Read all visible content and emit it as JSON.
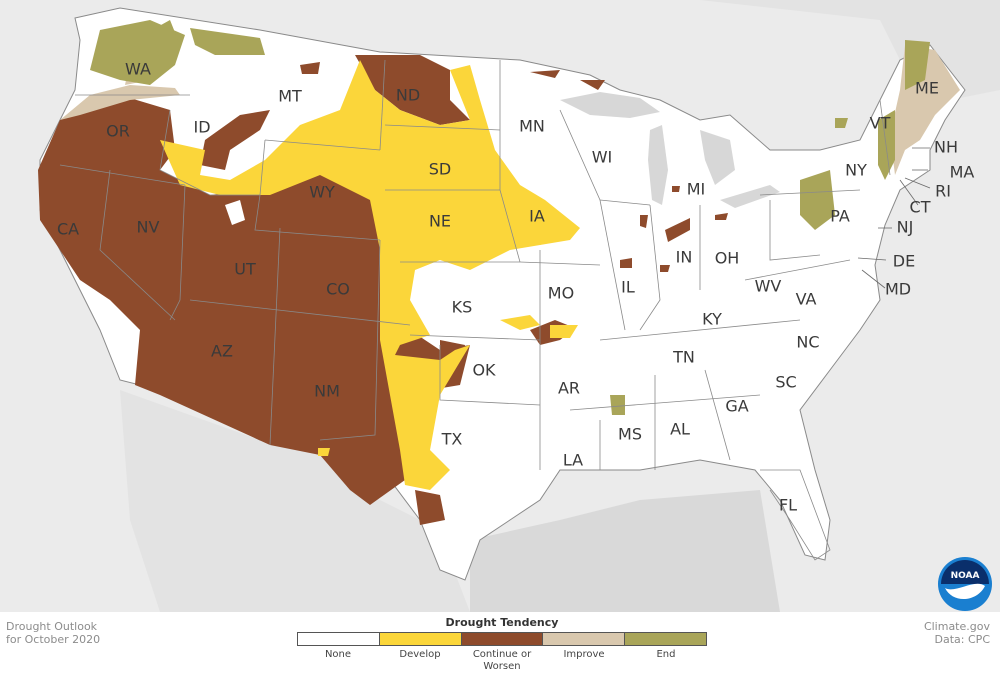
{
  "title_lines": [
    "Drought Outlook",
    "for October 2020"
  ],
  "credit_lines": [
    "Climate.gov",
    "Data: CPC"
  ],
  "logo_text": "NOAA",
  "legend": {
    "title": "Drought Tendency",
    "items": [
      {
        "label": "None",
        "color": "#ffffff"
      },
      {
        "label": "Develop",
        "color": "#fbd63a"
      },
      {
        "label": "Continue or Worsen",
        "color": "#8e4b2c"
      },
      {
        "label": "Improve",
        "color": "#d9c8ae"
      },
      {
        "label": "End",
        "color": "#a9a559"
      }
    ]
  },
  "colors": {
    "land": "#ffffff",
    "background": "#ebebeb",
    "state_border": "#8a8a8a",
    "water": "#d7d7d7"
  },
  "states": [
    "WA",
    "OR",
    "CA",
    "NV",
    "ID",
    "MT",
    "WY",
    "UT",
    "CO",
    "AZ",
    "NM",
    "ND",
    "SD",
    "NE",
    "KS",
    "OK",
    "TX",
    "MN",
    "IA",
    "MO",
    "AR",
    "LA",
    "WI",
    "IL",
    "MI",
    "IN",
    "OH",
    "KY",
    "TN",
    "MS",
    "AL",
    "GA",
    "FL",
    "SC",
    "NC",
    "VA",
    "WV",
    "PA",
    "NY",
    "VT",
    "NH",
    "ME",
    "MA",
    "CT",
    "RI",
    "NJ",
    "DE",
    "MD"
  ]
}
